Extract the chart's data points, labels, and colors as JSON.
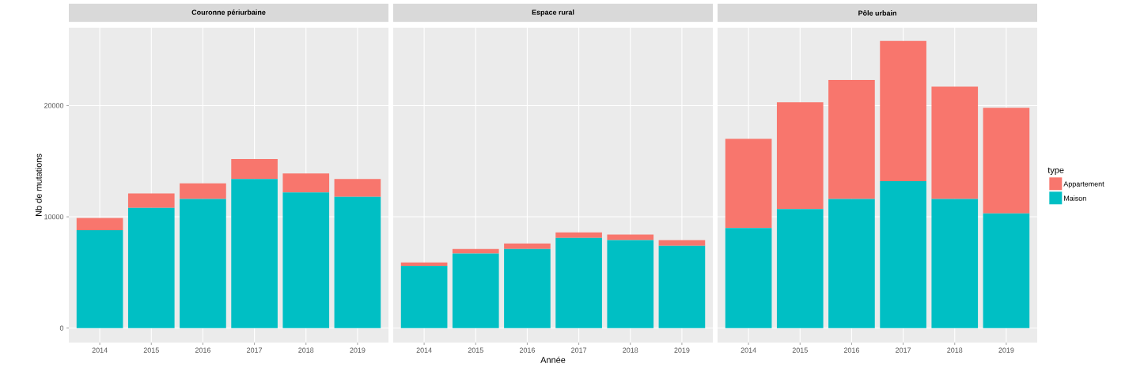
{
  "chart_data": [
    {
      "type": "bar",
      "title": "Couronne périurbaine",
      "ylabel": "Nb de mutations",
      "stacked": true,
      "categories": [
        "2014",
        "2015",
        "2016",
        "2017",
        "2018",
        "2019"
      ],
      "series": [
        {
          "color": "#00bfc4",
          "values": [
            8800,
            10800,
            11600,
            13400,
            12200,
            11800
          ]
        },
        {
          "color": "#f8766d",
          "values": [
            1100,
            1300,
            1400,
            1800,
            1700,
            1600
          ]
        }
      ],
      "ylim": [
        -1300,
        27000
      ],
      "yticks": [
        0,
        10000,
        20000
      ],
      "grid": true
    },
    {
      "type": "bar",
      "title": "Espace rural",
      "xlabel": "Année",
      "stacked": true,
      "categories": [
        "2014",
        "2015",
        "2016",
        "2017",
        "2018",
        "2019"
      ],
      "series": [
        {
          "color": "#00bfc4",
          "values": [
            5600,
            6700,
            7100,
            8100,
            7900,
            7400
          ]
        },
        {
          "color": "#f8766d",
          "values": [
            300,
            400,
            500,
            500,
            500,
            500
          ]
        }
      ],
      "ylim": [
        -1300,
        27000
      ],
      "yticks": [
        0,
        10000,
        20000
      ],
      "grid": true,
      "tick_labels": "x"
    },
    {
      "type": "bar",
      "title": "Pôle urbain",
      "legend_title": "type",
      "stacked": true,
      "categories": [
        "2014",
        "2015",
        "2016",
        "2017",
        "2018",
        "2019"
      ],
      "series": [
        {
          "name": "Maison",
          "color": "#00bfc4",
          "values": [
            9000,
            10700,
            11600,
            13200,
            11600,
            10300
          ]
        },
        {
          "name": "Appartement",
          "color": "#f8766d",
          "values": [
            8000,
            9600,
            10700,
            12600,
            10100,
            9500
          ]
        }
      ],
      "ylim": [
        -1300,
        27000
      ],
      "yticks": [
        0,
        10000,
        20000
      ],
      "grid": true,
      "tick_labels": "x",
      "legend": "right"
    }
  ]
}
